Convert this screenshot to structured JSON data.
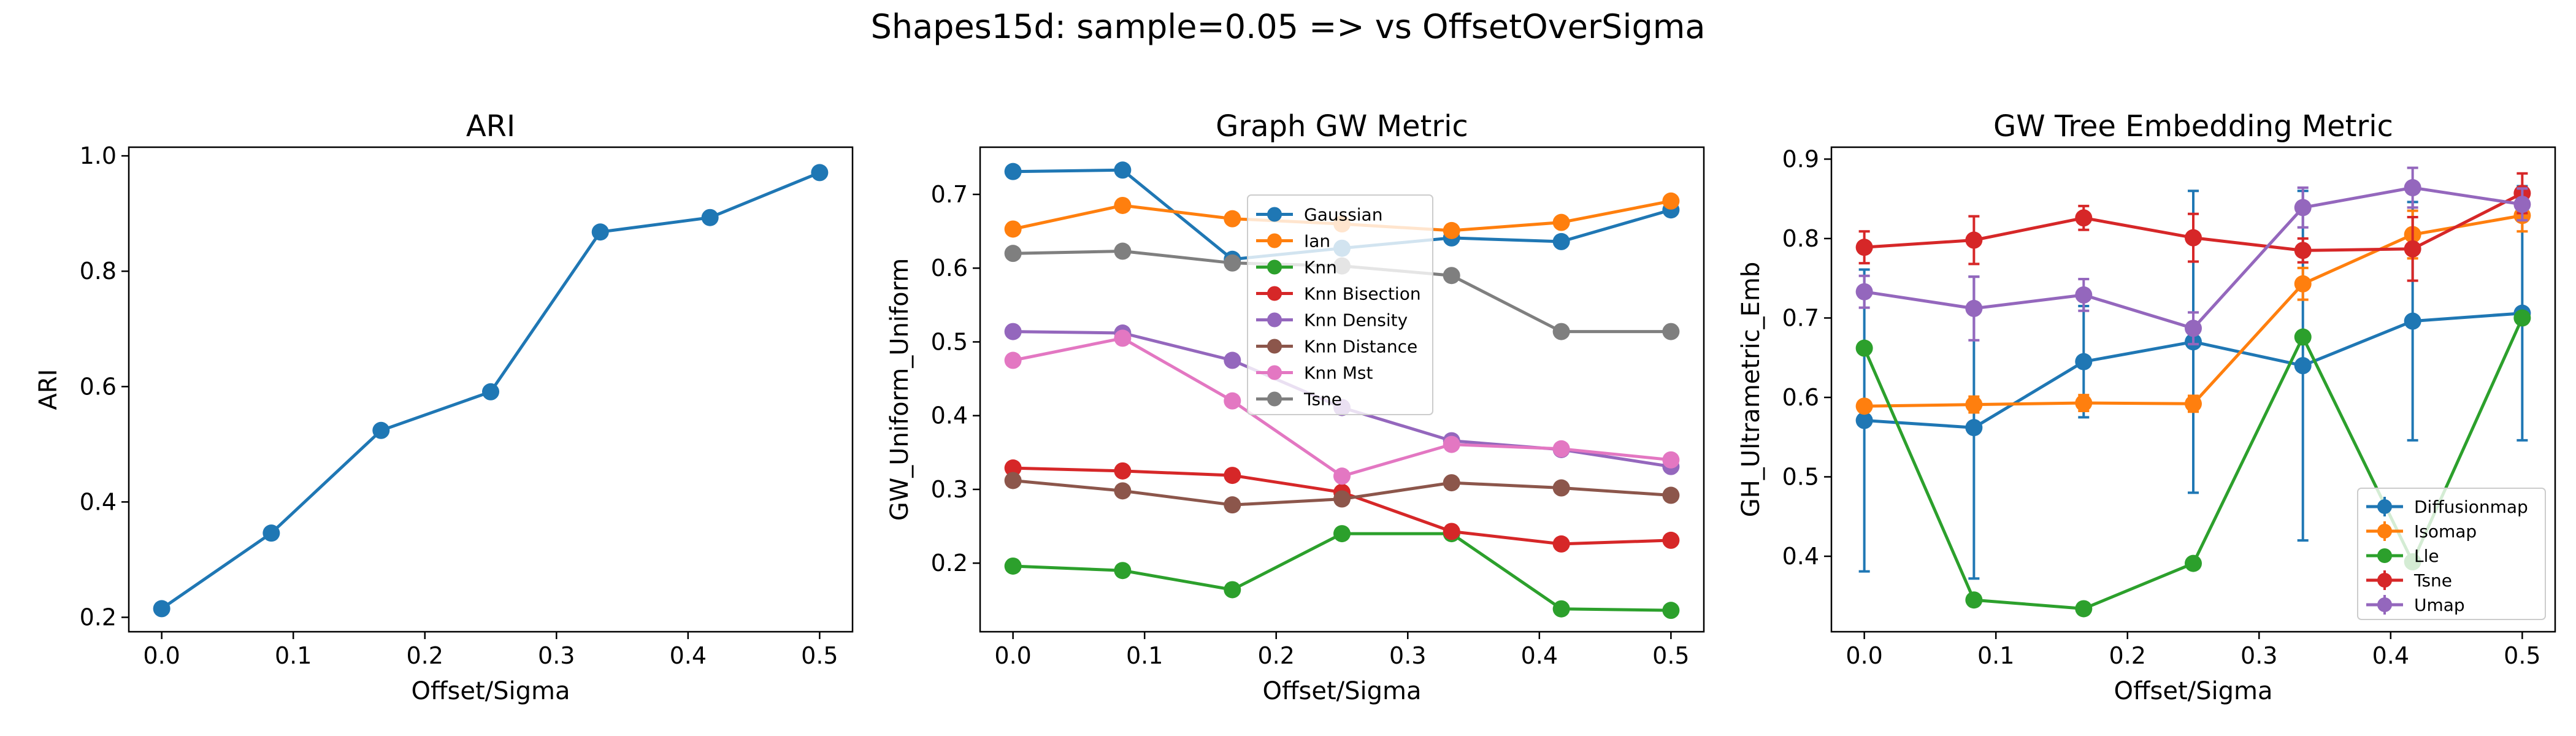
{
  "figure": {
    "suptitle": "Shapes15d: sample=0.05 => vs OffsetOverSigma"
  },
  "chart_data": [
    {
      "type": "line",
      "title": "ARI",
      "xlabel": "Offset/Sigma",
      "ylabel": "ARI",
      "xlim": [
        -0.025,
        0.525
      ],
      "ylim": [
        0.175,
        1.015
      ],
      "xticks": [
        0.0,
        0.1,
        0.2,
        0.3,
        0.4,
        0.5
      ],
      "yticks": [
        0.2,
        0.4,
        0.6,
        0.8,
        1.0
      ],
      "xtick_labels": [
        "0.0",
        "0.1",
        "0.2",
        "0.3",
        "0.4",
        "0.5"
      ],
      "ytick_labels": [
        "0.2",
        "0.4",
        "0.6",
        "0.8",
        "1.0"
      ],
      "grid": false,
      "x": [
        0.0,
        0.0833,
        0.1667,
        0.25,
        0.3333,
        0.4167,
        0.5
      ],
      "series": [
        {
          "name": "",
          "color": "#1f77b4",
          "values": [
            0.215,
            0.346,
            0.524,
            0.591,
            0.868,
            0.893,
            0.971
          ]
        }
      ]
    },
    {
      "type": "line",
      "title": "Graph GW Metric",
      "xlabel": "Offset/Sigma",
      "ylabel": "GW_Uniform_Uniform",
      "xlim": [
        -0.025,
        0.525
      ],
      "ylim": [
        0.107,
        0.764
      ],
      "xticks": [
        0.0,
        0.1,
        0.2,
        0.3,
        0.4,
        0.5
      ],
      "yticks": [
        0.2,
        0.3,
        0.4,
        0.5,
        0.6,
        0.7
      ],
      "xtick_labels": [
        "0.0",
        "0.1",
        "0.2",
        "0.3",
        "0.4",
        "0.5"
      ],
      "ytick_labels": [
        "0.2",
        "0.3",
        "0.4",
        "0.5",
        "0.6",
        "0.7"
      ],
      "grid": false,
      "legend_position": "top-center",
      "x": [
        0.0,
        0.0833,
        0.1667,
        0.25,
        0.3333,
        0.4167,
        0.5
      ],
      "series": [
        {
          "name": "Gaussian",
          "color": "#1f77b4",
          "values": [
            0.731,
            0.733,
            0.612,
            0.627,
            0.641,
            0.636,
            0.679
          ]
        },
        {
          "name": "Ian",
          "color": "#ff7f0e",
          "values": [
            0.653,
            0.685,
            0.667,
            0.66,
            0.651,
            0.662,
            0.691
          ]
        },
        {
          "name": "Knn",
          "color": "#2ca02c",
          "values": [
            0.196,
            0.19,
            0.164,
            0.24,
            0.24,
            0.138,
            0.136
          ]
        },
        {
          "name": "Knn Bisection",
          "color": "#d62728",
          "values": [
            0.329,
            0.325,
            0.319,
            0.296,
            0.243,
            0.226,
            0.231
          ]
        },
        {
          "name": "Knn Density",
          "color": "#9467bd",
          "values": [
            0.514,
            0.512,
            0.475,
            0.411,
            0.366,
            0.354,
            0.331
          ]
        },
        {
          "name": "Knn Distance",
          "color": "#8c564b",
          "values": [
            0.312,
            0.298,
            0.279,
            0.287,
            0.309,
            0.302,
            0.292
          ]
        },
        {
          "name": "Knn Mst",
          "color": "#e377c2",
          "values": [
            0.475,
            0.505,
            0.42,
            0.318,
            0.361,
            0.355,
            0.34
          ]
        },
        {
          "name": "Tsne",
          "color": "#7f7f7f",
          "values": [
            0.62,
            0.623,
            0.607,
            0.603,
            0.59,
            0.514,
            0.514
          ]
        }
      ]
    },
    {
      "type": "line",
      "title": "GW Tree Embedding Metric",
      "xlabel": "Offset/Sigma",
      "ylabel": "GH_Ultrametric_Emb",
      "xlim": [
        -0.025,
        0.525
      ],
      "ylim": [
        0.305,
        0.915
      ],
      "xticks": [
        0.0,
        0.1,
        0.2,
        0.3,
        0.4,
        0.5
      ],
      "yticks": [
        0.4,
        0.5,
        0.6,
        0.7,
        0.8,
        0.9
      ],
      "xtick_labels": [
        "0.0",
        "0.1",
        "0.2",
        "0.3",
        "0.4",
        "0.5"
      ],
      "ytick_labels": [
        "0.4",
        "0.5",
        "0.6",
        "0.7",
        "0.8",
        "0.9"
      ],
      "grid": false,
      "legend_position": "bottom-right",
      "x": [
        0.0,
        0.0833,
        0.1667,
        0.25,
        0.3333,
        0.4167,
        0.5
      ],
      "series": [
        {
          "name": "Diffusionmap",
          "color": "#1f77b4",
          "values": [
            0.571,
            0.562,
            0.645,
            0.67,
            0.64,
            0.696,
            0.706
          ],
          "error": [
            0.19,
            0.19,
            0.07,
            0.19,
            0.22,
            0.15,
            0.16
          ]
        },
        {
          "name": "Isomap",
          "color": "#ff7f0e",
          "values": [
            0.589,
            0.591,
            0.593,
            0.592,
            0.743,
            0.805,
            0.829
          ],
          "error": [
            0.005,
            0.01,
            0.01,
            0.01,
            0.02,
            0.03,
            0.02
          ]
        },
        {
          "name": "Lle",
          "color": "#2ca02c",
          "values": [
            0.662,
            0.345,
            0.334,
            0.391,
            0.676,
            0.393,
            0.7
          ],
          "error": [
            0,
            0,
            0,
            0,
            0,
            0,
            0
          ]
        },
        {
          "name": "Tsne",
          "color": "#d62728",
          "values": [
            0.789,
            0.798,
            0.826,
            0.801,
            0.785,
            0.787,
            0.857
          ],
          "error": [
            0.02,
            0.03,
            0.015,
            0.03,
            0.015,
            0.04,
            0.025
          ]
        },
        {
          "name": "Umap",
          "color": "#9467bd",
          "values": [
            0.733,
            0.712,
            0.729,
            0.687,
            0.839,
            0.864,
            0.843
          ],
          "error": [
            0.02,
            0.04,
            0.02,
            0.02,
            0.025,
            0.025,
            0.02
          ]
        }
      ]
    }
  ]
}
